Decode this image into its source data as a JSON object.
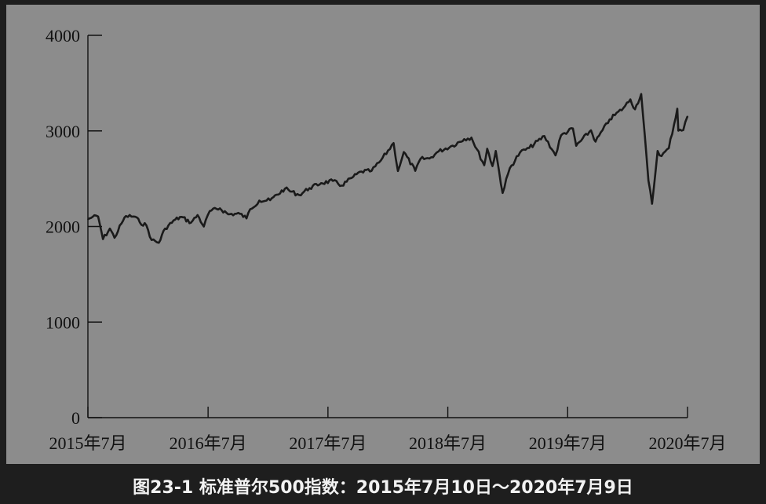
{
  "caption": "图23-1 标准普尔500指数：2015年7月10日～2020年7月9日",
  "colors": {
    "background": "#1e1e1e",
    "plot_area": "#8c8c8c",
    "line": "#1a1a1a",
    "caption_text": "#f2f2f2"
  },
  "chart_data": {
    "type": "line",
    "title": "",
    "xlabel": "",
    "ylabel": "",
    "ylim": [
      0,
      4000
    ],
    "yticks": [
      "0",
      "1000",
      "2000",
      "3000",
      "4000"
    ],
    "xlim": [
      "2015-07-10",
      "2020-07-09"
    ],
    "xticks": [
      {
        "date": "2015-07-10",
        "label": "2015年7月"
      },
      {
        "date": "2016-07-10",
        "label": "2016年7月"
      },
      {
        "date": "2017-07-10",
        "label": "2017年7月"
      },
      {
        "date": "2018-07-10",
        "label": "2018年7月"
      },
      {
        "date": "2019-07-10",
        "label": "2019年7月"
      },
      {
        "date": "2020-07-09",
        "label": "2020年7月"
      }
    ],
    "grid": false,
    "series": [
      {
        "points": [
          [
            "2015-07-10",
            2076
          ],
          [
            "2015-07-24",
            2100
          ],
          [
            "2015-08-10",
            2104
          ],
          [
            "2015-08-25",
            1868
          ],
          [
            "2015-09-15",
            1978
          ],
          [
            "2015-09-29",
            1882
          ],
          [
            "2015-10-20",
            2030
          ],
          [
            "2015-11-03",
            2109
          ],
          [
            "2015-12-01",
            2102
          ],
          [
            "2015-12-15",
            2043
          ],
          [
            "2016-01-04",
            2012
          ],
          [
            "2016-01-20",
            1859
          ],
          [
            "2016-02-11",
            1829
          ],
          [
            "2016-03-01",
            1978
          ],
          [
            "2016-04-01",
            2072
          ],
          [
            "2016-04-20",
            2100
          ],
          [
            "2016-05-19",
            2040
          ],
          [
            "2016-06-08",
            2119
          ],
          [
            "2016-06-27",
            2000
          ],
          [
            "2016-07-15",
            2161
          ],
          [
            "2016-08-15",
            2190
          ],
          [
            "2016-09-09",
            2128
          ],
          [
            "2016-10-15",
            2133
          ],
          [
            "2016-11-04",
            2085
          ],
          [
            "2016-11-15",
            2180
          ],
          [
            "2016-12-13",
            2271
          ],
          [
            "2017-01-15",
            2275
          ],
          [
            "2017-03-01",
            2395
          ],
          [
            "2017-04-13",
            2329
          ],
          [
            "2017-05-15",
            2402
          ],
          [
            "2017-06-19",
            2453
          ],
          [
            "2017-07-25",
            2477
          ],
          [
            "2017-08-21",
            2428
          ],
          [
            "2017-09-20",
            2508
          ],
          [
            "2017-10-20",
            2575
          ],
          [
            "2017-11-20",
            2582
          ],
          [
            "2017-12-18",
            2690
          ],
          [
            "2018-01-26",
            2872
          ],
          [
            "2018-02-08",
            2581
          ],
          [
            "2018-02-26",
            2779
          ],
          [
            "2018-04-02",
            2582
          ],
          [
            "2018-04-18",
            2708
          ],
          [
            "2018-05-15",
            2711
          ],
          [
            "2018-06-12",
            2786
          ],
          [
            "2018-07-25",
            2846
          ],
          [
            "2018-08-29",
            2914
          ],
          [
            "2018-09-20",
            2930
          ],
          [
            "2018-10-29",
            2641
          ],
          [
            "2018-11-07",
            2813
          ],
          [
            "2018-11-23",
            2632
          ],
          [
            "2018-12-03",
            2790
          ],
          [
            "2018-12-24",
            2351
          ],
          [
            "2019-01-15",
            2610
          ],
          [
            "2019-02-15",
            2775
          ],
          [
            "2019-03-15",
            2822
          ],
          [
            "2019-04-30",
            2946
          ],
          [
            "2019-06-03",
            2744
          ],
          [
            "2019-06-20",
            2954
          ],
          [
            "2019-07-26",
            3025
          ],
          [
            "2019-08-05",
            2844
          ],
          [
            "2019-09-19",
            3006
          ],
          [
            "2019-10-03",
            2888
          ],
          [
            "2019-11-15",
            3120
          ],
          [
            "2019-12-27",
            3240
          ],
          [
            "2020-01-17",
            3330
          ],
          [
            "2020-01-31",
            3226
          ],
          [
            "2020-02-19",
            3386
          ],
          [
            "2020-03-12",
            2480
          ],
          [
            "2020-03-23",
            2237
          ],
          [
            "2020-04-09",
            2790
          ],
          [
            "2020-04-21",
            2737
          ],
          [
            "2020-05-13",
            2820
          ],
          [
            "2020-06-08",
            3232
          ],
          [
            "2020-06-11",
            3002
          ],
          [
            "2020-06-26",
            3009
          ],
          [
            "2020-07-09",
            3152
          ]
        ]
      }
    ]
  }
}
